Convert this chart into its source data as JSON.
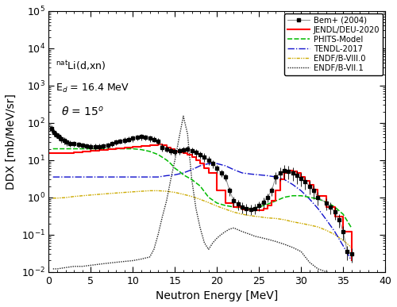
{
  "xlabel": "Neutron Energy [MeV]",
  "ylabel": "DDX [mb/MeV/sr]",
  "xlim": [
    0,
    40
  ],
  "ylim": [
    0.01,
    100000.0
  ],
  "colors": {
    "bem": "#888888",
    "jendl": "#ff0000",
    "phits": "#00bb00",
    "tendl": "#1111cc",
    "endfb8": "#ccaa00",
    "endfb7": "#222222"
  },
  "bem_x": [
    0.3,
    0.6,
    0.9,
    1.2,
    1.5,
    1.8,
    2.1,
    2.5,
    3.0,
    3.5,
    4.0,
    4.5,
    5.0,
    5.5,
    6.0,
    6.5,
    7.0,
    7.5,
    8.0,
    8.5,
    9.0,
    9.5,
    10.0,
    10.5,
    11.0,
    11.5,
    12.0,
    12.5,
    13.0,
    13.5,
    14.0,
    14.5,
    15.0,
    15.5,
    16.0,
    16.5,
    17.0,
    17.5,
    18.0,
    18.5,
    19.0,
    19.5,
    20.0,
    20.5,
    21.0,
    21.5,
    22.0,
    22.5,
    23.0,
    23.5,
    24.0,
    24.5,
    25.0,
    25.5,
    26.0,
    26.5,
    27.0,
    27.5,
    28.0,
    28.5,
    29.0,
    29.5,
    30.0,
    30.5,
    31.0,
    31.5,
    32.0,
    33.0,
    33.5,
    34.0,
    34.5,
    35.0,
    35.5,
    36.0
  ],
  "bem_y": [
    70,
    55,
    48,
    42,
    37,
    33,
    30,
    28,
    27,
    26,
    25,
    24,
    23,
    23,
    23,
    24,
    25,
    27,
    30,
    32,
    34,
    36,
    38,
    40,
    42,
    40,
    38,
    36,
    32,
    22,
    20,
    18,
    17,
    18,
    19,
    20,
    18,
    16,
    14,
    12,
    10,
    8.0,
    6.0,
    4.5,
    3.5,
    1.5,
    0.8,
    0.65,
    0.55,
    0.5,
    0.48,
    0.5,
    0.6,
    0.75,
    1.0,
    1.5,
    3.5,
    4.5,
    5.2,
    5.0,
    4.5,
    3.8,
    3.2,
    2.6,
    2.0,
    1.5,
    1.0,
    0.7,
    0.55,
    0.4,
    0.25,
    0.12,
    0.035,
    0.03
  ],
  "bem_yerr": [
    15,
    12,
    10,
    9,
    8,
    7,
    6,
    5,
    4.5,
    4,
    4,
    4,
    4,
    4,
    4,
    4,
    4,
    4.5,
    5,
    5,
    6,
    6,
    7,
    7,
    8,
    7,
    7,
    6,
    6,
    5,
    4,
    4,
    4,
    4,
    4,
    4,
    4,
    4,
    3,
    3,
    2.5,
    2,
    1.5,
    1,
    0.8,
    0.4,
    0.25,
    0.2,
    0.18,
    0.16,
    0.15,
    0.15,
    0.18,
    0.22,
    0.28,
    0.4,
    1.2,
    1.8,
    2.2,
    2.0,
    1.8,
    1.5,
    1.2,
    1.0,
    0.8,
    0.6,
    0.4,
    0.25,
    0.2,
    0.15,
    0.1,
    0.05,
    0.015,
    0.012
  ],
  "jendl_x": [
    0.1,
    0.5,
    1.0,
    1.5,
    2.0,
    3.0,
    4.0,
    5.0,
    6.0,
    7.0,
    8.0,
    9.0,
    10.0,
    11.0,
    12.0,
    13.0,
    13.5,
    14.0,
    14.5,
    15.0,
    15.5,
    16.0,
    16.5,
    17.0,
    17.5,
    18.0,
    18.5,
    19.0,
    20.0,
    21.0,
    22.0,
    23.0,
    24.0,
    24.5,
    25.0,
    25.5,
    26.0,
    26.5,
    27.0,
    27.5,
    28.0,
    28.5,
    29.0,
    29.5,
    30.0,
    30.5,
    31.0,
    31.5,
    32.0,
    33.0,
    34.0,
    35.0,
    36.0
  ],
  "jendl_y": [
    15,
    15,
    15,
    15,
    15,
    16,
    17,
    18,
    19,
    20,
    21,
    22,
    23,
    24,
    25,
    26,
    25,
    22,
    20,
    17,
    16,
    15,
    14,
    12,
    10,
    8.0,
    6.0,
    4.5,
    1.5,
    0.7,
    0.55,
    0.48,
    0.45,
    0.44,
    0.45,
    0.5,
    0.6,
    0.8,
    1.5,
    3.0,
    4.5,
    5.2,
    5.0,
    4.5,
    3.5,
    2.8,
    2.2,
    1.6,
    1.1,
    0.55,
    0.3,
    0.12,
    0.02
  ],
  "phits_x": [
    0.5,
    1.0,
    2.0,
    3.0,
    4.0,
    5.0,
    6.0,
    7.0,
    8.0,
    9.0,
    10.0,
    11.0,
    12.0,
    13.0,
    14.0,
    14.5,
    15.0,
    15.5,
    16.0,
    17.0,
    18.0,
    19.0,
    20.0,
    21.0,
    22.0,
    23.0,
    24.0,
    25.0,
    26.0,
    27.0,
    28.0,
    29.0,
    30.0,
    31.0,
    32.0,
    33.0,
    34.0,
    35.0,
    36.0
  ],
  "phits_y": [
    20,
    20,
    20,
    20,
    20,
    20,
    20,
    20,
    20,
    20,
    20,
    19,
    17,
    14,
    10,
    8.0,
    6.0,
    5.0,
    4.0,
    3.0,
    2.0,
    1.0,
    0.7,
    0.6,
    0.55,
    0.5,
    0.5,
    0.55,
    0.65,
    0.8,
    1.0,
    1.1,
    1.1,
    1.0,
    0.9,
    0.75,
    0.55,
    0.35,
    0.15
  ],
  "tendl_x": [
    0.5,
    1.0,
    2.0,
    3.0,
    4.0,
    5.0,
    6.0,
    7.0,
    8.0,
    9.0,
    10.0,
    11.0,
    12.0,
    13.0,
    14.0,
    15.0,
    16.0,
    17.0,
    18.0,
    19.0,
    20.0,
    21.0,
    22.0,
    23.0,
    24.0,
    25.0,
    26.0,
    27.0,
    28.0,
    29.0,
    30.0,
    31.0,
    32.0,
    33.0,
    34.0,
    35.0,
    36.0
  ],
  "tendl_y": [
    3.5,
    3.5,
    3.5,
    3.5,
    3.5,
    3.5,
    3.5,
    3.5,
    3.5,
    3.5,
    3.5,
    3.5,
    3.5,
    3.5,
    3.8,
    4.0,
    4.5,
    5.5,
    7.0,
    8.0,
    8.0,
    7.0,
    5.5,
    4.5,
    4.2,
    4.0,
    3.8,
    3.5,
    3.0,
    2.2,
    1.5,
    0.9,
    0.5,
    0.25,
    0.12,
    0.05,
    0.02
  ],
  "endfb8_x": [
    0.5,
    1.0,
    2.0,
    3.0,
    4.0,
    5.0,
    6.0,
    7.0,
    8.0,
    9.0,
    10.0,
    11.0,
    12.0,
    13.0,
    14.0,
    15.0,
    16.0,
    17.0,
    18.0,
    19.0,
    20.0,
    21.0,
    22.0,
    23.0,
    24.0,
    25.0,
    26.0,
    27.0,
    28.0,
    29.0,
    30.0,
    31.0,
    32.0,
    33.0,
    34.0,
    35.0,
    36.0
  ],
  "endfb8_y": [
    0.95,
    0.95,
    0.98,
    1.05,
    1.1,
    1.15,
    1.2,
    1.25,
    1.3,
    1.35,
    1.4,
    1.45,
    1.5,
    1.5,
    1.45,
    1.35,
    1.2,
    1.05,
    0.88,
    0.72,
    0.58,
    0.48,
    0.4,
    0.35,
    0.32,
    0.3,
    0.28,
    0.27,
    0.25,
    0.22,
    0.2,
    0.18,
    0.16,
    0.13,
    0.1,
    0.07,
    0.045
  ],
  "endfb7_x": [
    0.5,
    1.0,
    2.0,
    3.0,
    4.0,
    5.0,
    6.0,
    7.0,
    8.0,
    9.0,
    10.0,
    11.0,
    12.0,
    12.5,
    13.0,
    13.5,
    14.0,
    14.5,
    15.0,
    15.5,
    16.0,
    16.5,
    17.0,
    17.5,
    18.0,
    18.5,
    19.0,
    19.5,
    20.0,
    20.5,
    21.0,
    21.5,
    22.0,
    23.0,
    24.0,
    24.5,
    25.0,
    25.5,
    26.0,
    27.0,
    28.0,
    29.0,
    30.0,
    30.5,
    31.0,
    32.0,
    33.0,
    34.0
  ],
  "endfb7_y": [
    0.012,
    0.012,
    0.013,
    0.014,
    0.014,
    0.015,
    0.016,
    0.017,
    0.018,
    0.019,
    0.02,
    0.022,
    0.025,
    0.04,
    0.1,
    0.3,
    0.8,
    3.0,
    10.0,
    40.0,
    150.0,
    50.0,
    3.0,
    0.5,
    0.15,
    0.06,
    0.04,
    0.06,
    0.08,
    0.1,
    0.12,
    0.14,
    0.15,
    0.12,
    0.1,
    0.09,
    0.085,
    0.08,
    0.075,
    0.065,
    0.055,
    0.045,
    0.035,
    0.025,
    0.018,
    0.012,
    0.01,
    0.008
  ]
}
